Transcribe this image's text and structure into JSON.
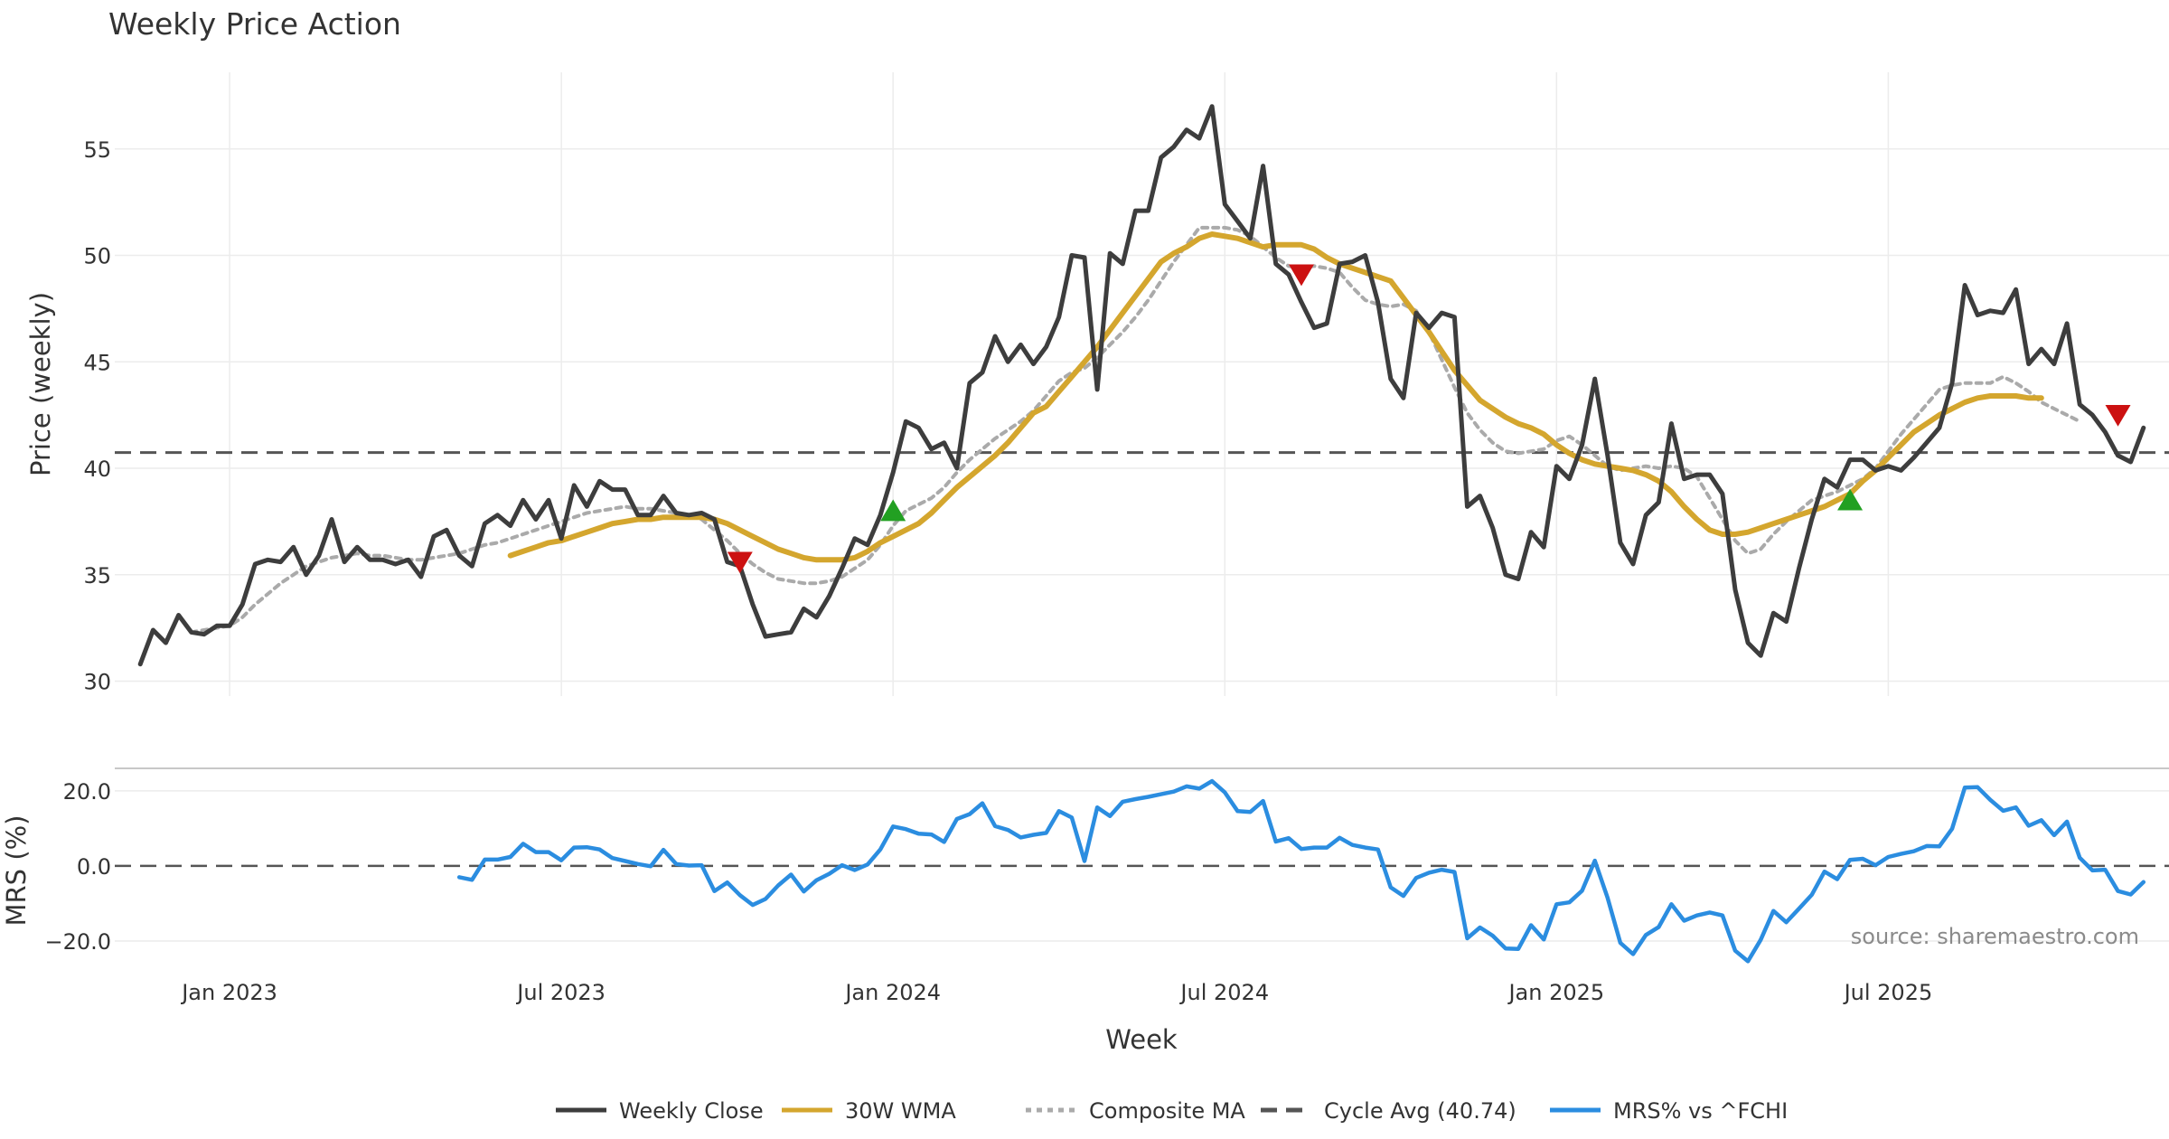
{
  "chart_data": {
    "type": "line",
    "title": "Weekly Price Action",
    "xlabel": "Week",
    "x_tick_labels": [
      "Jan 2023",
      "Jul 2023",
      "Jan 2024",
      "Jul 2024",
      "Jan 2025",
      "Jul 2025"
    ],
    "x_tick_weeks": [
      7,
      33,
      59,
      85,
      111,
      137
    ],
    "x_range_weeks": [
      -2,
      159
    ],
    "price_panel": {
      "ylabel": "Price (weekly)",
      "ylim": [
        29.3,
        58.6
      ],
      "y_ticks": [
        30,
        35,
        40,
        45,
        50,
        55
      ],
      "y_tick_labels": [
        "30",
        "35",
        "40",
        "45",
        "50",
        "55"
      ],
      "cycle_avg": 40.74,
      "series": [
        {
          "name": "Weekly Close",
          "color": "#3d3d3d",
          "start_week": 0,
          "values": [
            30.8,
            32.4,
            31.8,
            33.1,
            32.3,
            32.2,
            32.6,
            32.6,
            33.6,
            35.5,
            35.7,
            35.6,
            36.3,
            35.0,
            35.9,
            37.6,
            35.6,
            36.3,
            35.7,
            35.7,
            35.5,
            35.7,
            34.9,
            36.8,
            37.1,
            35.9,
            35.4,
            37.4,
            37.8,
            37.3,
            38.5,
            37.6,
            38.5,
            36.7,
            39.2,
            38.2,
            39.4,
            39.0,
            39.0,
            37.8,
            37.8,
            38.7,
            37.9,
            37.8,
            37.9,
            37.6,
            35.6,
            35.4,
            33.6,
            32.1,
            32.2,
            32.3,
            33.4,
            33.0,
            34.0,
            35.3,
            36.7,
            36.4,
            37.8,
            39.8,
            42.2,
            41.9,
            40.9,
            41.2,
            40.0,
            44.0,
            44.5,
            46.2,
            45.0,
            45.8,
            44.9,
            45.7,
            47.1,
            50.0,
            49.9,
            43.7,
            50.1,
            49.6,
            52.1,
            52.1,
            54.6,
            55.1,
            55.9,
            55.5,
            57.0,
            52.4,
            51.6,
            50.8,
            54.2,
            49.6,
            49.1,
            47.8,
            46.6,
            46.8,
            49.6,
            49.7,
            50.0,
            47.8,
            44.2,
            43.3,
            47.3,
            46.6,
            47.3,
            47.1,
            38.2,
            38.7,
            37.2,
            35.0,
            34.8,
            37.0,
            36.3,
            40.1,
            39.5,
            41.1,
            44.2,
            40.6,
            36.5,
            35.5,
            37.8,
            38.4,
            42.1,
            39.5,
            39.7,
            39.7,
            38.8,
            34.3,
            31.8,
            31.2,
            33.2,
            32.8,
            35.3,
            37.6,
            39.5,
            39.1,
            40.4,
            40.4,
            39.9,
            40.1,
            39.9,
            40.5,
            41.2,
            41.9,
            44.0,
            48.6,
            47.2,
            47.4,
            47.3,
            48.4,
            44.9,
            45.6,
            44.9,
            46.8,
            43.0,
            42.5,
            41.7,
            40.6,
            40.3,
            41.9
          ]
        },
        {
          "name": "30W WMA",
          "color": "#d4a62e",
          "start_week": 29,
          "values": [
            35.9,
            36.1,
            36.3,
            36.5,
            36.6,
            36.8,
            37.0,
            37.2,
            37.4,
            37.5,
            37.6,
            37.6,
            37.7,
            37.7,
            37.7,
            37.7,
            37.6,
            37.4,
            37.1,
            36.8,
            36.5,
            36.2,
            36.0,
            35.8,
            35.7,
            35.7,
            35.7,
            35.8,
            36.1,
            36.5,
            36.8,
            37.1,
            37.4,
            37.9,
            38.5,
            39.1,
            39.6,
            40.1,
            40.6,
            41.2,
            41.9,
            42.6,
            42.9,
            43.6,
            44.3,
            45.0,
            45.7,
            46.5,
            47.3,
            48.1,
            48.9,
            49.7,
            50.1,
            50.4,
            50.8,
            51.0,
            50.9,
            50.8,
            50.6,
            50.4,
            50.5,
            50.5,
            50.5,
            50.3,
            49.9,
            49.6,
            49.4,
            49.2,
            49.0,
            48.8,
            48.0,
            47.2,
            46.4,
            45.5,
            44.6,
            43.9,
            43.2,
            42.8,
            42.4,
            42.1,
            41.9,
            41.6,
            41.1,
            40.7,
            40.4,
            40.2,
            40.1,
            40.0,
            39.9,
            39.7,
            39.4,
            38.9,
            38.2,
            37.6,
            37.1,
            36.9,
            36.9,
            37.0,
            37.2,
            37.4,
            37.6,
            37.8,
            38.0,
            38.2,
            38.5,
            38.8,
            39.4,
            39.9,
            40.5,
            41.1,
            41.7,
            42.1,
            42.5,
            42.8,
            43.1,
            43.3,
            43.4,
            43.4,
            43.4,
            43.3,
            43.3
          ]
        },
        {
          "name": "Composite MA",
          "color": "#aaaaaa",
          "start_week": 4,
          "values": [
            32.3,
            32.4,
            32.5,
            32.6,
            33.0,
            33.6,
            34.1,
            34.6,
            35.0,
            35.4,
            35.6,
            35.8,
            35.9,
            36.0,
            35.9,
            35.9,
            35.8,
            35.7,
            35.7,
            35.8,
            35.9,
            36.0,
            36.2,
            36.4,
            36.5,
            36.7,
            36.9,
            37.1,
            37.3,
            37.5,
            37.7,
            37.9,
            38.0,
            38.1,
            38.2,
            38.1,
            38.1,
            38.0,
            37.9,
            37.8,
            37.6,
            37.1,
            36.6,
            36.0,
            35.5,
            35.1,
            34.8,
            34.7,
            34.6,
            34.6,
            34.7,
            34.9,
            35.3,
            35.7,
            36.4,
            37.3,
            38.0,
            38.3,
            38.6,
            39.1,
            39.8,
            40.4,
            40.9,
            41.4,
            41.8,
            42.2,
            42.7,
            43.4,
            44.1,
            44.5,
            44.7,
            45.2,
            45.8,
            46.4,
            47.1,
            47.9,
            48.8,
            49.7,
            50.5,
            51.3,
            51.3,
            51.3,
            51.2,
            50.9,
            50.4,
            49.9,
            49.5,
            49.4,
            49.5,
            49.4,
            49.2,
            48.5,
            47.9,
            47.7,
            47.6,
            47.7,
            47.4,
            46.4,
            45.1,
            43.8,
            42.6,
            41.8,
            41.2,
            40.8,
            40.7,
            40.8,
            40.9,
            41.3,
            41.5,
            41.1,
            40.6,
            40.1,
            39.9,
            40.0,
            40.1,
            40.0,
            40.1,
            40.0,
            39.6,
            38.6,
            37.6,
            36.6,
            36.0,
            36.2,
            36.9,
            37.5,
            38.0,
            38.5,
            38.7,
            38.9,
            39.2,
            39.5,
            40.0,
            40.8,
            41.6,
            42.3,
            43.0,
            43.7,
            43.9,
            44.0,
            44.0,
            44.0,
            44.3,
            44.0,
            43.6,
            43.1,
            42.8,
            42.5,
            42.2
          ]
        }
      ],
      "markers": [
        {
          "type": "sell",
          "week": 47,
          "value": 35.6,
          "color": "#cc1111"
        },
        {
          "type": "buy",
          "week": 59,
          "value": 38.0,
          "color": "#22a022"
        },
        {
          "type": "sell",
          "week": 91,
          "value": 49.1,
          "color": "#cc1111"
        },
        {
          "type": "buy",
          "week": 134,
          "value": 38.5,
          "color": "#22a022"
        },
        {
          "type": "sell",
          "week": 155,
          "value": 42.5,
          "color": "#cc1111"
        }
      ]
    },
    "mrs_panel": {
      "ylabel": "MRS (%)",
      "ylim": [
        -27,
        26
      ],
      "y_ticks": [
        -20,
        0,
        20
      ],
      "y_tick_labels": [
        "−20.0",
        "0.0",
        "20.0"
      ],
      "series": [
        {
          "name": "MRS% vs ^FCHI",
          "color": "#2b8de0",
          "start_week": 25,
          "values": [
            -3.0,
            -3.7,
            1.7,
            1.7,
            2.4,
            5.9,
            3.7,
            3.7,
            1.5,
            4.9,
            5.0,
            4.4,
            2.1,
            1.3,
            0.5,
            -0.1,
            4.3,
            0.5,
            0.1,
            0.2,
            -6.7,
            -4.4,
            -7.8,
            -10.4,
            -8.8,
            -5.2,
            -2.3,
            -6.8,
            -3.8,
            -2.1,
            0.2,
            -1.1,
            0.4,
            4.4,
            10.5,
            9.8,
            8.6,
            8.4,
            6.4,
            12.5,
            13.8,
            16.7,
            10.6,
            9.6,
            7.6,
            8.3,
            8.8,
            14.6,
            12.9,
            1.3,
            15.6,
            13.3,
            17.1,
            17.8,
            18.4,
            19.1,
            19.8,
            21.2,
            20.6,
            22.6,
            19.6,
            14.6,
            14.4,
            17.3,
            6.5,
            7.4,
            4.5,
            4.9,
            4.9,
            7.5,
            5.6,
            4.9,
            4.4,
            -5.7,
            -8.0,
            -3.2,
            -1.8,
            -1.0,
            -1.6,
            -19.3,
            -16.4,
            -18.6,
            -22.0,
            -22.1,
            -15.8,
            -19.6,
            -10.2,
            -9.7,
            -6.6,
            1.4,
            -8.5,
            -20.5,
            -23.5,
            -18.4,
            -16.3,
            -10.2,
            -14.6,
            -13.2,
            -12.4,
            -13.2,
            -22.6,
            -25.4,
            -19.7,
            -12.0,
            -15.0,
            -11.4,
            -7.7,
            -1.5,
            -3.5,
            1.6,
            1.9,
            0.2,
            2.4,
            3.2,
            3.9,
            5.3,
            5.2,
            9.9,
            20.9,
            21.0,
            17.6,
            14.7,
            15.6,
            10.7,
            12.2,
            8.2,
            11.8,
            2.2,
            -1.2,
            -1.0,
            -6.7,
            -7.6,
            -4.3
          ]
        }
      ]
    },
    "legend": [
      {
        "label": "Weekly Close",
        "style": "solid",
        "color": "#3d3d3d"
      },
      {
        "label": "30W WMA",
        "style": "solid",
        "color": "#d4a62e"
      },
      {
        "label": "Composite MA",
        "style": "dotted",
        "color": "#aaaaaa"
      },
      {
        "label": "Cycle Avg (40.74)",
        "style": "dashed",
        "color": "#555555"
      },
      {
        "label": "MRS% vs ^FCHI",
        "style": "solid",
        "color": "#2b8de0"
      }
    ],
    "legend_position": "bottom-center",
    "annotation": "source: sharemaestro.com",
    "grid": true
  }
}
